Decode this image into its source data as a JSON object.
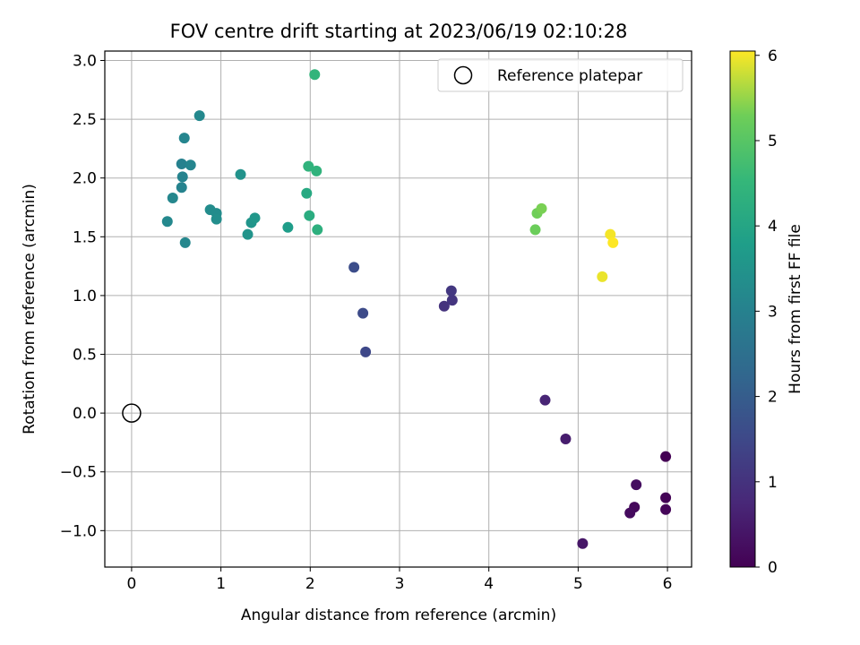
{
  "chart_data": {
    "type": "scatter",
    "title": "FOV centre drift starting at 2023/06/19 02:10:28",
    "xlabel": "Angular distance from reference (arcmin)",
    "ylabel": "Rotation from reference (arcmin)",
    "xlim": [
      -0.3,
      6.27
    ],
    "ylim": [
      -1.31,
      3.08
    ],
    "x_ticks": [
      "0",
      "1",
      "2",
      "3",
      "4",
      "5",
      "6"
    ],
    "y_ticks": [
      "−1.0",
      "−0.5",
      "0.0",
      "0.5",
      "1.0",
      "1.5",
      "2.0",
      "2.5",
      "3.0"
    ],
    "grid": true,
    "legend": {
      "position": "top-right",
      "entries": [
        "Reference platepar"
      ]
    },
    "reference_point": {
      "x": 0.0,
      "y": 0.0
    },
    "colorbar": {
      "label": "Hours from first FF file",
      "colormap": "viridis",
      "range": [
        0,
        6.05
      ],
      "ticks": [
        "0",
        "1",
        "2",
        "3",
        "4",
        "5",
        "6"
      ]
    },
    "points": [
      {
        "x": 5.98,
        "y": -0.37,
        "c": 0.0
      },
      {
        "x": 5.98,
        "y": -0.72,
        "c": 0.05
      },
      {
        "x": 5.98,
        "y": -0.82,
        "c": 0.1
      },
      {
        "x": 5.63,
        "y": -0.8,
        "c": 0.15
      },
      {
        "x": 5.58,
        "y": -0.85,
        "c": 0.2
      },
      {
        "x": 5.65,
        "y": -0.61,
        "c": 0.25
      },
      {
        "x": 5.05,
        "y": -1.11,
        "c": 0.4
      },
      {
        "x": 4.86,
        "y": -0.22,
        "c": 0.55
      },
      {
        "x": 4.63,
        "y": 0.11,
        "c": 0.7
      },
      {
        "x": 3.5,
        "y": 0.91,
        "c": 1.0
      },
      {
        "x": 3.59,
        "y": 0.96,
        "c": 1.05
      },
      {
        "x": 3.58,
        "y": 1.04,
        "c": 1.1
      },
      {
        "x": 2.62,
        "y": 0.52,
        "c": 1.5
      },
      {
        "x": 2.59,
        "y": 0.85,
        "c": 1.55
      },
      {
        "x": 2.49,
        "y": 1.24,
        "c": 1.6
      },
      {
        "x": 0.56,
        "y": 2.12,
        "c": 3.0
      },
      {
        "x": 0.57,
        "y": 2.01,
        "c": 3.05
      },
      {
        "x": 0.56,
        "y": 1.92,
        "c": 3.05
      },
      {
        "x": 0.66,
        "y": 2.11,
        "c": 3.1
      },
      {
        "x": 0.59,
        "y": 2.34,
        "c": 3.1
      },
      {
        "x": 0.6,
        "y": 1.45,
        "c": 3.15
      },
      {
        "x": 0.46,
        "y": 1.83,
        "c": 3.15
      },
      {
        "x": 0.4,
        "y": 1.63,
        "c": 3.2
      },
      {
        "x": 0.76,
        "y": 2.53,
        "c": 3.2
      },
      {
        "x": 0.88,
        "y": 1.73,
        "c": 3.3
      },
      {
        "x": 0.95,
        "y": 1.7,
        "c": 3.3
      },
      {
        "x": 0.95,
        "y": 1.65,
        "c": 3.35
      },
      {
        "x": 1.22,
        "y": 2.03,
        "c": 3.45
      },
      {
        "x": 1.3,
        "y": 1.52,
        "c": 3.5
      },
      {
        "x": 1.34,
        "y": 1.62,
        "c": 3.55
      },
      {
        "x": 1.38,
        "y": 1.66,
        "c": 3.6
      },
      {
        "x": 1.75,
        "y": 1.58,
        "c": 3.75
      },
      {
        "x": 1.96,
        "y": 1.87,
        "c": 4.1
      },
      {
        "x": 1.99,
        "y": 1.68,
        "c": 4.2
      },
      {
        "x": 2.08,
        "y": 1.56,
        "c": 4.3
      },
      {
        "x": 1.98,
        "y": 2.1,
        "c": 4.4
      },
      {
        "x": 2.07,
        "y": 2.06,
        "c": 4.4
      },
      {
        "x": 2.05,
        "y": 2.88,
        "c": 4.45
      },
      {
        "x": 4.52,
        "y": 1.56,
        "c": 5.25
      },
      {
        "x": 4.54,
        "y": 1.7,
        "c": 5.3
      },
      {
        "x": 4.59,
        "y": 1.74,
        "c": 5.35
      },
      {
        "x": 5.27,
        "y": 1.16,
        "c": 5.95
      },
      {
        "x": 5.36,
        "y": 1.52,
        "c": 6.0
      },
      {
        "x": 5.39,
        "y": 1.45,
        "c": 6.05
      }
    ]
  }
}
